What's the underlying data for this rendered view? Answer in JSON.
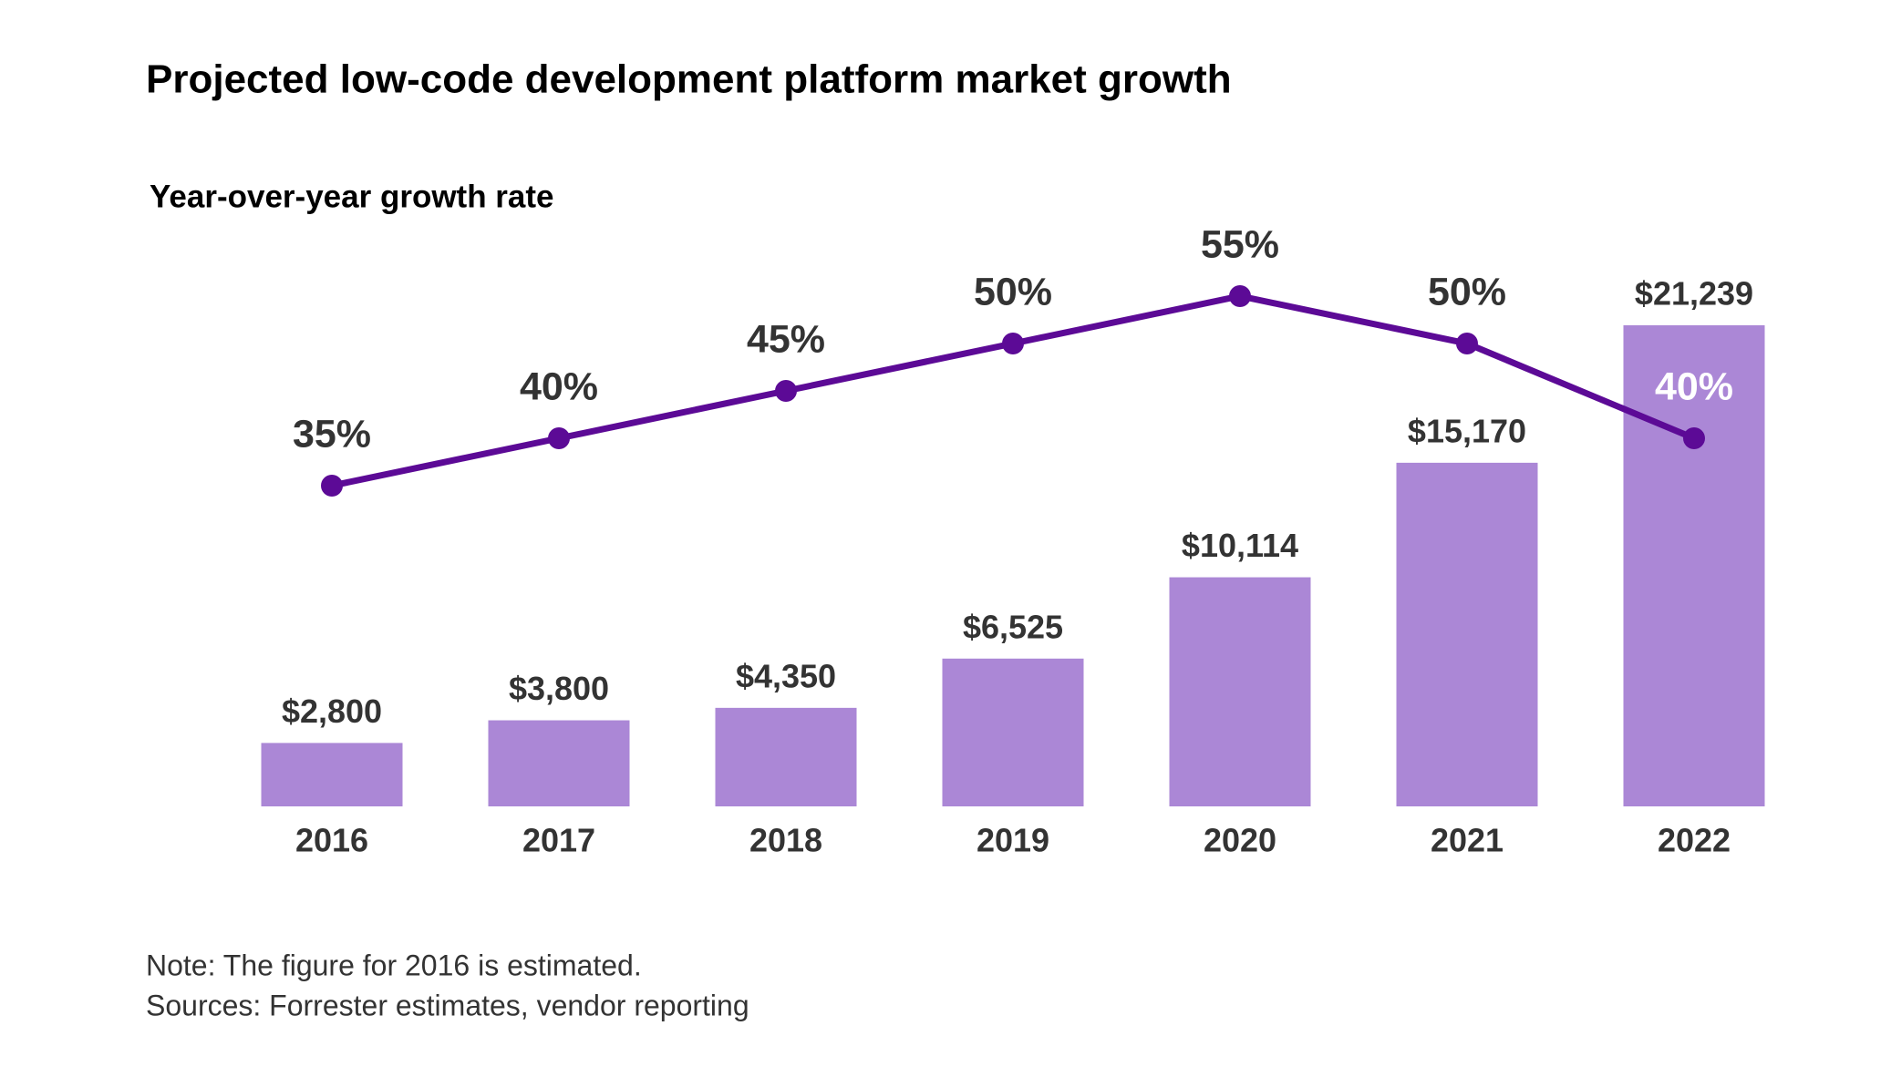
{
  "chart_data": {
    "type": "bar",
    "title": "Projected low-code development platform market growth",
    "categories": [
      "2016",
      "2017",
      "2018",
      "2019",
      "2020",
      "2021",
      "2022"
    ],
    "values": [
      2800,
      3800,
      4350,
      6525,
      10114,
      15170,
      21239
    ],
    "value_labels": [
      "$2,800",
      "$3,800",
      "$4,350",
      "$6,525",
      "$10,114",
      "$15,170",
      "$21,239"
    ],
    "color": "#ab87d6",
    "overlay": {
      "type": "line",
      "title": "Year-over-year growth rate",
      "values": [
        35,
        40,
        45,
        50,
        55,
        50,
        40
      ],
      "value_labels": [
        "35%",
        "40%",
        "45%",
        "50%",
        "55%",
        "50%",
        "40%"
      ],
      "color": "#5c0a96"
    },
    "notes": [
      "Note: The figure for 2016 is estimated.",
      "Sources: Forrester estimates, vendor reporting"
    ]
  }
}
